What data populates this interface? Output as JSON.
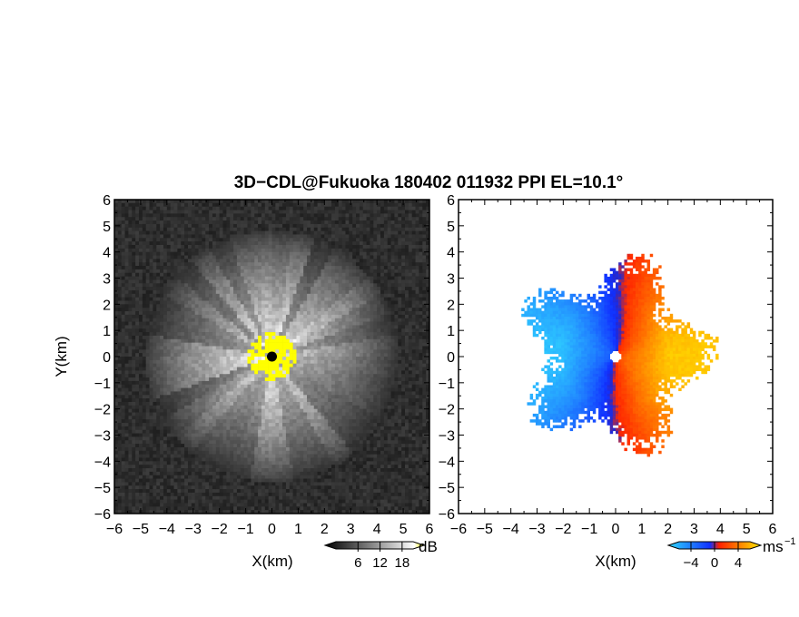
{
  "figure": {
    "title": "3D−CDL@Fukuoka 180402 011932 PPI EL=10.1°"
  },
  "chart_data": [
    {
      "type": "heatmap",
      "panel": "left",
      "quantity_unit": "dB",
      "xlabel": "X(km)",
      "ylabel": "Y(km)",
      "xlim": [
        -6,
        6
      ],
      "ylim": [
        -6,
        6
      ],
      "xticks": [
        "−6",
        "−5",
        "−4",
        "−3",
        "−2",
        "−1",
        "0",
        "1",
        "2",
        "3",
        "4",
        "5",
        "6"
      ],
      "yticks": [
        "−6",
        "−5",
        "−4",
        "−3",
        "−2",
        "−1",
        "0",
        "1",
        "2",
        "3",
        "4",
        "5",
        "6"
      ],
      "colorbar": {
        "unit": "dB",
        "ticks": [
          "6",
          "12",
          "18"
        ],
        "tick_values": [
          6,
          12,
          18
        ],
        "range": [
          0,
          21
        ],
        "colors": [
          "#000000",
          "#ffffff",
          "#ffff00"
        ]
      },
      "field": {
        "description_values": "radial backscatter intensity, brightest near radar, dark beyond about 4 km",
        "echo_radius_km": 4,
        "saturated_core_radius_km": 0.9,
        "radar_location": [
          0,
          0
        ]
      }
    },
    {
      "type": "heatmap",
      "panel": "right",
      "quantity_unit": "ms⁻¹",
      "xlabel": "X(km)",
      "xlim": [
        -6,
        6
      ],
      "ylim": [
        -6,
        6
      ],
      "xticks": [
        "−6",
        "−5",
        "−4",
        "−3",
        "−2",
        "−1",
        "0",
        "1",
        "2",
        "3",
        "4",
        "5",
        "6"
      ],
      "yticks": [
        "−6",
        "−5",
        "−4",
        "−3",
        "−2",
        "−1",
        "0",
        "1",
        "2",
        "3",
        "4",
        "5",
        "6"
      ],
      "colorbar": {
        "unit": "ms",
        "unit_superscript": "−1",
        "ticks": [
          "−4",
          "0",
          "4"
        ],
        "tick_values": [
          -4,
          0,
          4
        ],
        "range": [
          -6,
          6
        ],
        "colors": [
          "#30c8f0",
          "#1040ff",
          "#ff3000",
          "#ffe000"
        ]
      },
      "field": {
        "negative_side": "west",
        "positive_side": "east",
        "echo_radius_km": 4,
        "radar_location": [
          0,
          0
        ]
      }
    }
  ]
}
